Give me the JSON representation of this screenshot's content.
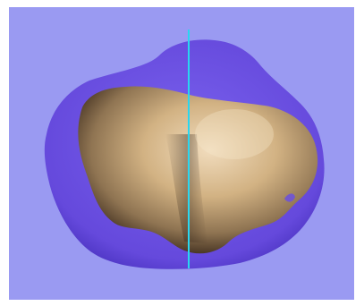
{
  "viewer": {
    "background_color": "#9a9af2",
    "frame_color": "#ffffff",
    "outer_surface_color": "#6b50e0",
    "inner_surface_color": "#c8aa80",
    "inner_surface_shadow_color": "#3a2a1c",
    "slice_line_color": "#29d6f0",
    "slice_line_orientation": "vertical",
    "camera_view": "3d-perspective",
    "overlay_text": ""
  }
}
